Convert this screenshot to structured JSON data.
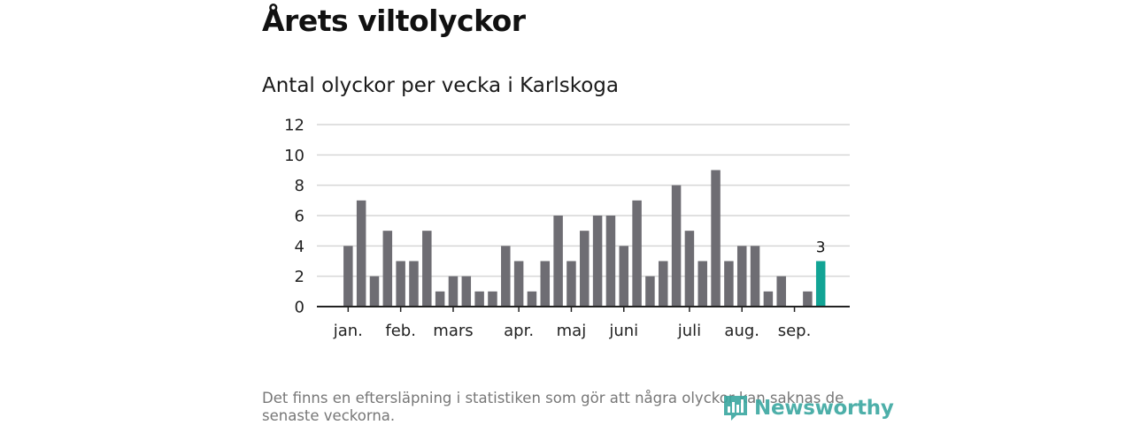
{
  "title": "Årets viltolyckor",
  "subtitle": "Antal olyckor per vecka i Karlskoga",
  "footnote": "Det finns en eftersläpning i statistiken som gör att några olyckor kan saknas de senaste veckorna.",
  "logo": {
    "text": "Newsworthy",
    "icon": "newsworthy-bar-icon"
  },
  "colors": {
    "bar": "#6e6d73",
    "highlight": "#12a495",
    "grid": "#d6d6d6",
    "axis": "#222222"
  },
  "chart_data": {
    "type": "bar",
    "title": "Antal olyckor per vecka i Karlskoga",
    "xlabel": "",
    "ylabel": "",
    "ylim": [
      0,
      12
    ],
    "yticks": [
      0,
      2,
      4,
      6,
      8,
      10,
      12
    ],
    "grid": true,
    "weeks": [
      1,
      2,
      3,
      4,
      5,
      6,
      7,
      8,
      9,
      10,
      11,
      12,
      13,
      14,
      15,
      16,
      17,
      18,
      19,
      20,
      21,
      22,
      23,
      24,
      25,
      26,
      27,
      28,
      29,
      30,
      31,
      32,
      33,
      34,
      35,
      36,
      37,
      38
    ],
    "values": [
      0,
      4,
      7,
      2,
      5,
      3,
      3,
      5,
      1,
      2,
      2,
      1,
      1,
      4,
      3,
      1,
      3,
      6,
      3,
      5,
      6,
      6,
      4,
      7,
      2,
      3,
      8,
      5,
      3,
      9,
      3,
      4,
      4,
      1,
      2,
      0,
      1,
      3
    ],
    "highlight_last": true,
    "value_labels": [
      {
        "week": 38,
        "label": "3"
      }
    ],
    "month_labels": [
      {
        "label": "jan.",
        "week": 2
      },
      {
        "label": "feb.",
        "week": 6
      },
      {
        "label": "mars",
        "week": 10
      },
      {
        "label": "apr.",
        "week": 15
      },
      {
        "label": "maj",
        "week": 19
      },
      {
        "label": "juni",
        "week": 23
      },
      {
        "label": "juli",
        "week": 28
      },
      {
        "label": "aug.",
        "week": 32
      },
      {
        "label": "sep.",
        "week": 36
      }
    ]
  }
}
